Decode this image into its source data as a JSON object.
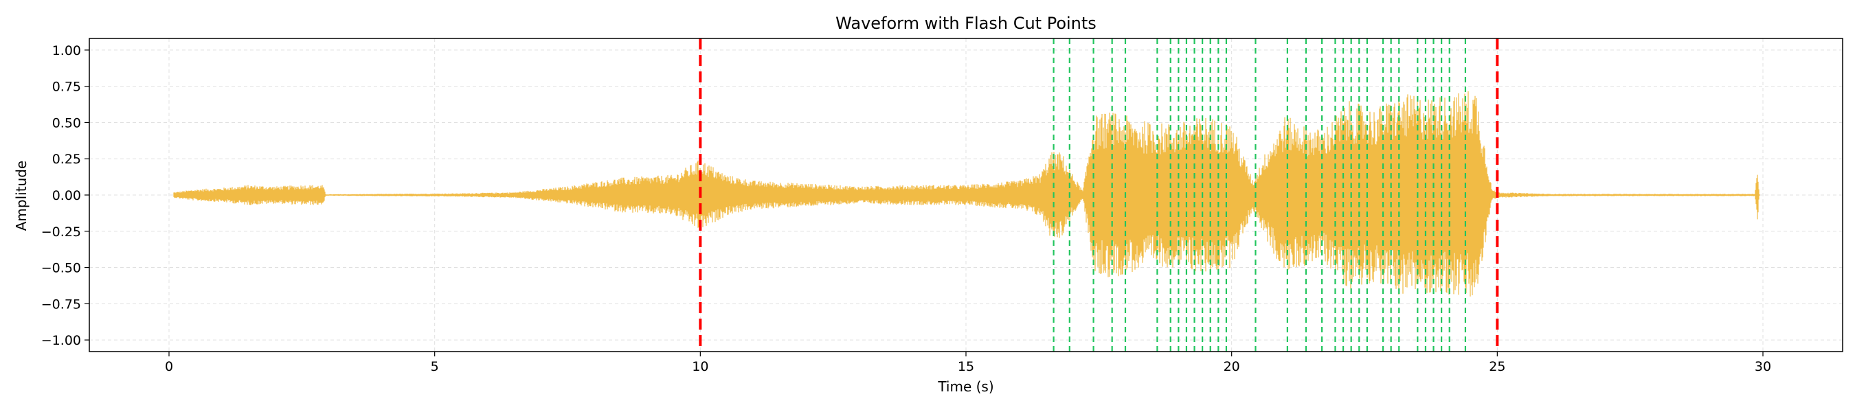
{
  "chart_data": {
    "type": "line",
    "title": "Waveform with Flash Cut Points",
    "xlabel": "Time (s)",
    "ylabel": "Amplitude",
    "xlim": [
      -1.5,
      31.5
    ],
    "ylim": [
      -1.08,
      1.08
    ],
    "grid": true,
    "x_ticks": [
      0,
      5,
      10,
      15,
      20,
      25,
      30
    ],
    "x_tick_labels": [
      "0",
      "5",
      "10",
      "15",
      "20",
      "25",
      "30"
    ],
    "y_ticks": [
      1.0,
      0.75,
      0.5,
      0.25,
      0.0,
      -0.25,
      -0.5,
      -0.75,
      -1.0
    ],
    "y_tick_labels": [
      "1.00",
      "0.75",
      "0.50",
      "0.25",
      "0.00",
      "−0.25",
      "−0.50",
      "−0.75",
      "−1.00"
    ],
    "waveform": {
      "color": "#f1bb45",
      "duration": 30.0,
      "envelope": [
        [
          0.1,
          0.02
        ],
        [
          0.5,
          0.04
        ],
        [
          1.0,
          0.05
        ],
        [
          1.5,
          0.07
        ],
        [
          2.0,
          0.06
        ],
        [
          2.5,
          0.07
        ],
        [
          2.9,
          0.07
        ],
        [
          2.95,
          0.005
        ],
        [
          4.0,
          0.008
        ],
        [
          5.5,
          0.012
        ],
        [
          6.5,
          0.02
        ],
        [
          7.5,
          0.06
        ],
        [
          8.5,
          0.12
        ],
        [
          9.5,
          0.14
        ],
        [
          10.0,
          0.25
        ],
        [
          10.5,
          0.14
        ],
        [
          11.0,
          0.1
        ],
        [
          12.0,
          0.08
        ],
        [
          13.0,
          0.06
        ],
        [
          14.0,
          0.07
        ],
        [
          15.0,
          0.07
        ],
        [
          16.0,
          0.1
        ],
        [
          16.4,
          0.15
        ],
        [
          16.6,
          0.3
        ],
        [
          16.8,
          0.3
        ],
        [
          17.0,
          0.15
        ],
        [
          17.2,
          0.03
        ],
        [
          17.4,
          0.55
        ],
        [
          17.7,
          0.58
        ],
        [
          18.0,
          0.55
        ],
        [
          18.5,
          0.5
        ],
        [
          19.0,
          0.5
        ],
        [
          19.5,
          0.55
        ],
        [
          20.0,
          0.5
        ],
        [
          20.4,
          0.1
        ],
        [
          20.7,
          0.35
        ],
        [
          21.0,
          0.55
        ],
        [
          21.3,
          0.5
        ],
        [
          21.7,
          0.45
        ],
        [
          22.2,
          0.65
        ],
        [
          22.7,
          0.6
        ],
        [
          23.2,
          0.7
        ],
        [
          23.7,
          0.68
        ],
        [
          24.2,
          0.7
        ],
        [
          24.6,
          0.75
        ],
        [
          24.9,
          0.04
        ],
        [
          25.0,
          0.02
        ],
        [
          26.0,
          0.008
        ],
        [
          29.85,
          0.008
        ],
        [
          29.9,
          0.2
        ],
        [
          29.93,
          0.005
        ]
      ]
    },
    "cut_points_red": [
      10.0,
      25.0
    ],
    "cut_points_green": [
      16.65,
      16.95,
      17.4,
      17.75,
      18.0,
      18.6,
      18.85,
      19.0,
      19.15,
      19.3,
      19.45,
      19.6,
      19.75,
      19.9,
      20.45,
      21.05,
      21.4,
      21.7,
      21.95,
      22.1,
      22.25,
      22.4,
      22.55,
      22.85,
      23.0,
      23.15,
      23.5,
      23.65,
      23.8,
      23.95,
      24.1,
      24.4
    ],
    "colors": {
      "red_cut": "#ff0000",
      "green_cut": "#22c55e",
      "grid": "#e0e0e0"
    }
  }
}
